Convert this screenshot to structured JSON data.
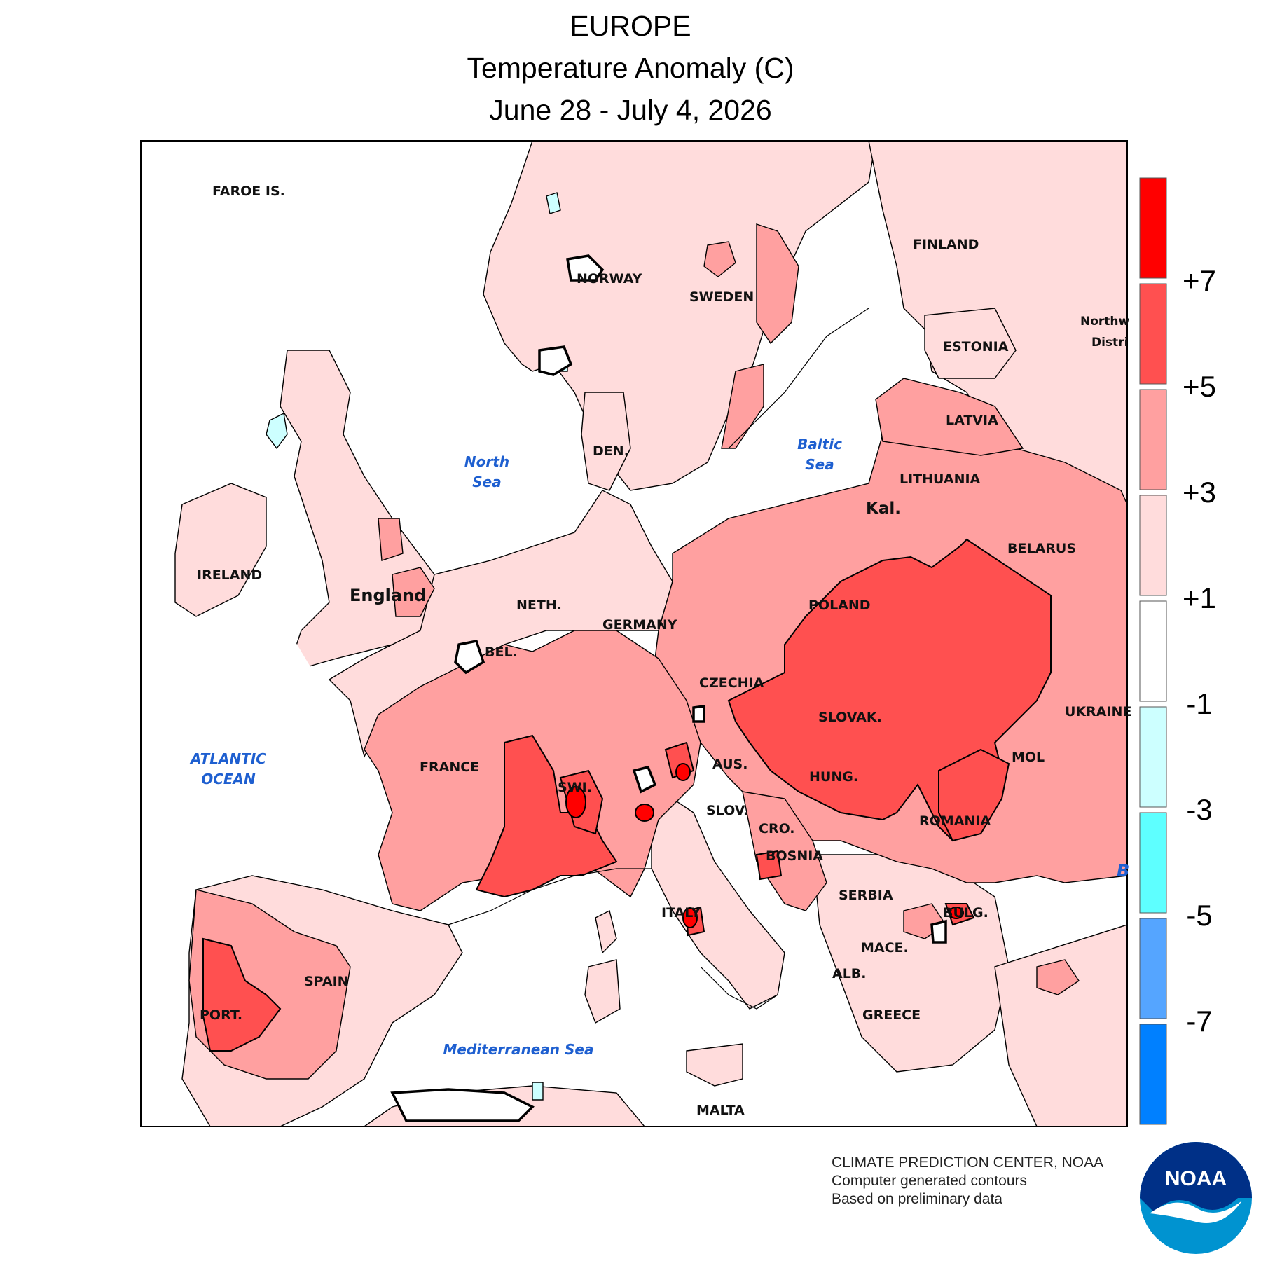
{
  "header": {
    "region": "EUROPE",
    "metric": "Temperature Anomaly (C)",
    "period": "June 28 - July 4, 2026"
  },
  "labels": {
    "faroe": "FAROE IS.",
    "norway": "NORWAY",
    "sweden": "SWEDEN",
    "finland": "FINLAND",
    "northwest1": "Northw",
    "northwest2": "Distri",
    "estonia": "ESTONIA",
    "latvia": "LATVIA",
    "lithuania": "LITHUANIA",
    "belarus": "BELARUS",
    "kal": "Kal.",
    "den": "DEN.",
    "ireland": "IRELAND",
    "england": "England",
    "neth": "NETH.",
    "germany": "GERMANY",
    "bel": "BEL.",
    "poland": "POLAND",
    "czechia": "CZECHIA",
    "slovak": "SLOVAK.",
    "ukraine": "UKRAINE",
    "france": "FRANCE",
    "swi": "SWI.",
    "aus": "AUS.",
    "hung": "HUNG.",
    "mol": "MOL",
    "slov": "SLOV.",
    "cro": "CRO.",
    "romania": "ROMANIA",
    "bosnia": "BOSNIA",
    "serbia": "SERBIA",
    "italy": "ITALY",
    "bulg": "BULG.",
    "mace": "MACE.",
    "alb": "ALB.",
    "spain": "SPAIN",
    "port": "PORT.",
    "greece": "GREECE",
    "malta": "MALTA",
    "b_edge": "B"
  },
  "seas": {
    "north1": "North",
    "north2": "Sea",
    "baltic1": "Baltic",
    "baltic2": "Sea",
    "atlantic1": "ATLANTIC",
    "atlantic2": "OCEAN",
    "med": "Mediterranean Sea"
  },
  "legend": {
    "colors": [
      "#ff0000",
      "#ff5050",
      "#ffa0a0",
      "#ffdcdc",
      "#ffffff",
      "#cdffff",
      "#5effff",
      "#55a5ff",
      "#0080ff"
    ],
    "ticks": [
      "+7",
      "+5",
      "+3",
      "+1",
      "-1",
      "-3",
      "-5",
      "-7"
    ]
  },
  "credits": {
    "line1": "CLIMATE PREDICTION CENTER, NOAA",
    "line2": "Computer generated contours",
    "line3": "Based on preliminary data"
  },
  "logo": {
    "text": "NOAA",
    "colors": {
      "dark": "#003087",
      "light": "#0093d0"
    }
  }
}
